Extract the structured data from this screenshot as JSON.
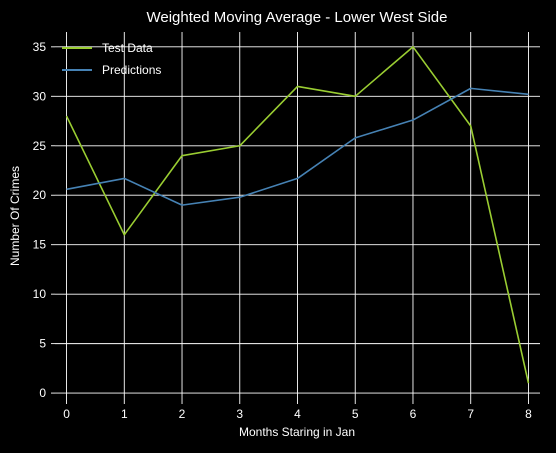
{
  "chart_data": {
    "type": "line",
    "title": "Weighted Moving Average - Lower West Side",
    "xlabel": "Months Staring in Jan",
    "ylabel": "Number Of Crimes",
    "x": [
      0,
      1,
      2,
      3,
      4,
      5,
      6,
      7,
      8
    ],
    "xticks": [
      "0",
      "1",
      "2",
      "3",
      "4",
      "5",
      "6",
      "7",
      "8"
    ],
    "yticks": [
      "0",
      "5",
      "10",
      "15",
      "20",
      "25",
      "30",
      "35"
    ],
    "xlim": [
      -0.2,
      8.2
    ],
    "ylim": [
      -0.7,
      36.5
    ],
    "grid": true,
    "legend_position": "top-left",
    "series": [
      {
        "name": "Test Data",
        "color": "#9acd32",
        "values": [
          28,
          16,
          24,
          25,
          31,
          30,
          35,
          27,
          1
        ]
      },
      {
        "name": "Predictions",
        "color": "#4682b4",
        "values": [
          20.6,
          21.7,
          19.0,
          19.8,
          21.7,
          25.8,
          27.6,
          30.8,
          30.2
        ]
      }
    ]
  }
}
